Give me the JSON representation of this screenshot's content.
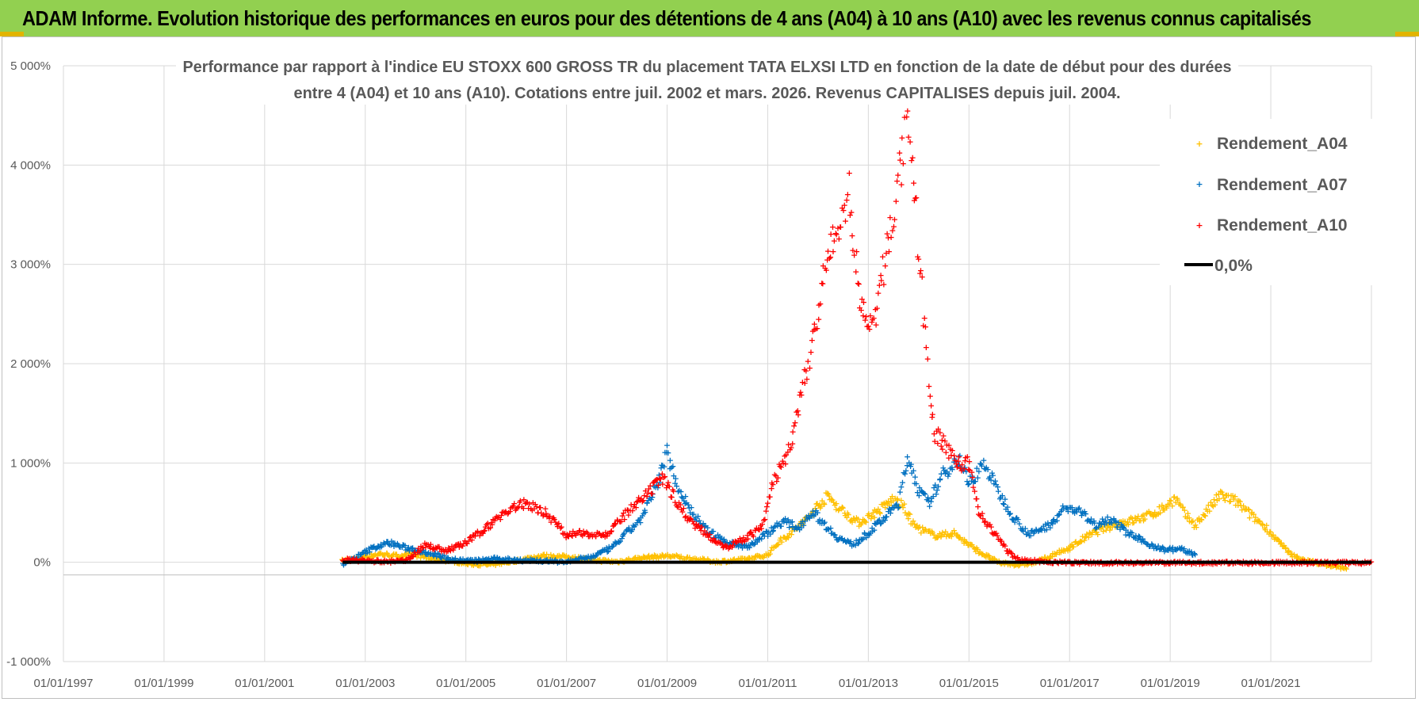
{
  "header": {
    "title": "ADAM Informe. Evolution historique des performances en euros pour des détentions de 4 ans (A04) à 10 ans (A10) avec les revenus connus capitalisés"
  },
  "colors": {
    "banner": "#92d050",
    "A04": "#ffc000",
    "A07": "#0070c0",
    "A10": "#ff0000",
    "zero": "#000000"
  },
  "chart_data": {
    "type": "scatter",
    "title_lines": [
      "Performance par rapport à l'indice EU STOXX 600 GROSS TR  du placement TATA ELXSI LTD en fonction de la date de début pour des durées",
      "entre 4 (A04) et 10 ans (A10). Cotations entre juil. 2002 et mars. 2026. Revenus CAPITALISES depuis juil. 2004."
    ],
    "xlabel": "",
    "ylabel": "",
    "xlim": [
      1997.0,
      2023.0
    ],
    "ylim": [
      -1000,
      5000
    ],
    "y_ticks": [
      -1000,
      0,
      1000,
      2000,
      3000,
      4000,
      5000
    ],
    "y_tick_labels": [
      "-1 000%",
      "0%",
      "1 000%",
      "2 000%",
      "3 000%",
      "4 000%",
      "5 000%"
    ],
    "x_ticks": [
      1997,
      1999,
      2001,
      2003,
      2005,
      2007,
      2009,
      2011,
      2013,
      2015,
      2017,
      2019,
      2021
    ],
    "x_tick_labels": [
      "01/01/1997",
      "01/01/1999",
      "01/01/2001",
      "01/01/2003",
      "01/01/2005",
      "01/01/2007",
      "01/01/2009",
      "01/01/2011",
      "01/01/2013",
      "01/01/2015",
      "01/01/2017",
      "01/01/2019",
      "01/01/2021"
    ],
    "x_grid": [
      1997,
      1999,
      2001,
      2003,
      2005,
      2007,
      2009,
      2011,
      2013,
      2015,
      2017,
      2019,
      2021,
      2023
    ],
    "legend_position": "top-right",
    "series": [
      {
        "name": "Rendement_A04",
        "color": "#ffc000",
        "marker": "+",
        "points": [
          [
            2002.55,
            20
          ],
          [
            2003.0,
            60
          ],
          [
            2003.3,
            90
          ],
          [
            2003.6,
            70
          ],
          [
            2004.0,
            80
          ],
          [
            2004.3,
            40
          ],
          [
            2004.7,
            20
          ],
          [
            2005.0,
            -10
          ],
          [
            2005.5,
            -20
          ],
          [
            2006.0,
            20
          ],
          [
            2006.5,
            70
          ],
          [
            2007.0,
            60
          ],
          [
            2007.5,
            30
          ],
          [
            2008.0,
            10
          ],
          [
            2008.5,
            50
          ],
          [
            2009.0,
            70
          ],
          [
            2009.5,
            40
          ],
          [
            2010.0,
            10
          ],
          [
            2010.5,
            30
          ],
          [
            2011.0,
            80
          ],
          [
            2011.2,
            200
          ],
          [
            2011.5,
            320
          ],
          [
            2011.8,
            450
          ],
          [
            2012.0,
            580
          ],
          [
            2012.2,
            670
          ],
          [
            2012.4,
            560
          ],
          [
            2012.6,
            480
          ],
          [
            2012.8,
            400
          ],
          [
            2013.0,
            460
          ],
          [
            2013.2,
            520
          ],
          [
            2013.5,
            640
          ],
          [
            2013.7,
            560
          ],
          [
            2013.9,
            380
          ],
          [
            2014.1,
            320
          ],
          [
            2014.3,
            280
          ],
          [
            2014.5,
            280
          ],
          [
            2014.7,
            300
          ],
          [
            2015.0,
            180
          ],
          [
            2015.3,
            80
          ],
          [
            2015.6,
            0
          ],
          [
            2016.0,
            -20
          ],
          [
            2016.3,
            0
          ],
          [
            2016.6,
            60
          ],
          [
            2017.0,
            150
          ],
          [
            2017.3,
            250
          ],
          [
            2017.6,
            330
          ],
          [
            2018.0,
            400
          ],
          [
            2018.3,
            430
          ],
          [
            2018.6,
            480
          ],
          [
            2018.9,
            560
          ],
          [
            2019.1,
            650
          ],
          [
            2019.3,
            480
          ],
          [
            2019.5,
            380
          ],
          [
            2019.8,
            560
          ],
          [
            2020.0,
            680
          ],
          [
            2020.3,
            620
          ],
          [
            2020.6,
            480
          ],
          [
            2020.9,
            360
          ],
          [
            2021.1,
            240
          ],
          [
            2021.4,
            80
          ],
          [
            2021.7,
            20
          ],
          [
            2022.0,
            -10
          ],
          [
            2022.3,
            -40
          ],
          [
            2022.5,
            -50
          ]
        ]
      },
      {
        "name": "Rendement_A07",
        "color": "#0070c0",
        "marker": "+",
        "points": [
          [
            2002.55,
            -20
          ],
          [
            2002.9,
            80
          ],
          [
            2003.2,
            160
          ],
          [
            2003.5,
            200
          ],
          [
            2003.8,
            150
          ],
          [
            2004.1,
            120
          ],
          [
            2004.4,
            80
          ],
          [
            2004.8,
            30
          ],
          [
            2005.2,
            20
          ],
          [
            2005.6,
            40
          ],
          [
            2006.0,
            30
          ],
          [
            2006.5,
            20
          ],
          [
            2007.0,
            10
          ],
          [
            2007.5,
            60
          ],
          [
            2007.9,
            150
          ],
          [
            2008.2,
            300
          ],
          [
            2008.5,
            450
          ],
          [
            2008.8,
            780
          ],
          [
            2009.0,
            1120
          ],
          [
            2009.2,
            780
          ],
          [
            2009.5,
            500
          ],
          [
            2009.8,
            320
          ],
          [
            2010.2,
            200
          ],
          [
            2010.6,
            160
          ],
          [
            2011.0,
            300
          ],
          [
            2011.3,
            420
          ],
          [
            2011.6,
            350
          ],
          [
            2011.9,
            520
          ],
          [
            2012.1,
            400
          ],
          [
            2012.4,
            250
          ],
          [
            2012.7,
            180
          ],
          [
            2013.0,
            300
          ],
          [
            2013.3,
            440
          ],
          [
            2013.6,
            600
          ],
          [
            2013.8,
            1080
          ],
          [
            2014.0,
            720
          ],
          [
            2014.2,
            600
          ],
          [
            2014.5,
            900
          ],
          [
            2014.8,
            1050
          ],
          [
            2015.0,
            800
          ],
          [
            2015.3,
            1000
          ],
          [
            2015.6,
            700
          ],
          [
            2015.9,
            450
          ],
          [
            2016.2,
            280
          ],
          [
            2016.6,
            380
          ],
          [
            2016.9,
            550
          ],
          [
            2017.2,
            520
          ],
          [
            2017.5,
            380
          ],
          [
            2017.8,
            450
          ],
          [
            2018.1,
            320
          ],
          [
            2018.5,
            200
          ],
          [
            2018.9,
            130
          ],
          [
            2019.2,
            140
          ],
          [
            2019.5,
            80
          ]
        ]
      },
      {
        "name": "Rendement_A10",
        "color": "#ff0000",
        "marker": "+",
        "points": [
          [
            2002.55,
            30
          ],
          [
            2003.0,
            20
          ],
          [
            2003.4,
            10
          ],
          [
            2003.8,
            20
          ],
          [
            2004.2,
            180
          ],
          [
            2004.6,
            120
          ],
          [
            2005.0,
            200
          ],
          [
            2005.4,
            350
          ],
          [
            2005.8,
            520
          ],
          [
            2006.2,
            600
          ],
          [
            2006.6,
            500
          ],
          [
            2007.0,
            280
          ],
          [
            2007.4,
            300
          ],
          [
            2007.8,
            280
          ],
          [
            2008.2,
            500
          ],
          [
            2008.6,
            680
          ],
          [
            2008.9,
            850
          ],
          [
            2009.1,
            700
          ],
          [
            2009.4,
            450
          ],
          [
            2009.8,
            280
          ],
          [
            2010.2,
            150
          ],
          [
            2010.6,
            260
          ],
          [
            2010.9,
            360
          ],
          [
            2011.1,
            800
          ],
          [
            2011.4,
            1100
          ],
          [
            2011.6,
            1500
          ],
          [
            2011.8,
            2000
          ],
          [
            2012.0,
            2500
          ],
          [
            2012.2,
            3100
          ],
          [
            2012.4,
            3300
          ],
          [
            2012.6,
            3800
          ],
          [
            2012.8,
            2800
          ],
          [
            2013.0,
            2300
          ],
          [
            2013.2,
            2600
          ],
          [
            2013.4,
            3300
          ],
          [
            2013.6,
            3800
          ],
          [
            2013.75,
            4400
          ],
          [
            2013.9,
            3800
          ],
          [
            2014.1,
            2500
          ],
          [
            2014.3,
            1300
          ],
          [
            2014.5,
            1200
          ],
          [
            2014.8,
            1000
          ],
          [
            2015.0,
            1000
          ],
          [
            2015.2,
            500
          ],
          [
            2015.5,
            300
          ],
          [
            2015.8,
            100
          ],
          [
            2016.0,
            30
          ],
          [
            2016.5,
            10
          ],
          [
            2017.0,
            0
          ],
          [
            2018.0,
            0
          ],
          [
            2019.0,
            0
          ],
          [
            2020.0,
            0
          ],
          [
            2021.0,
            0
          ],
          [
            2022.0,
            0
          ],
          [
            2023.0,
            0
          ]
        ]
      },
      {
        "name": "0,0%",
        "color": "#000000",
        "type": "line",
        "points": [
          [
            2002.55,
            0
          ],
          [
            2023.0,
            0
          ]
        ]
      }
    ]
  }
}
